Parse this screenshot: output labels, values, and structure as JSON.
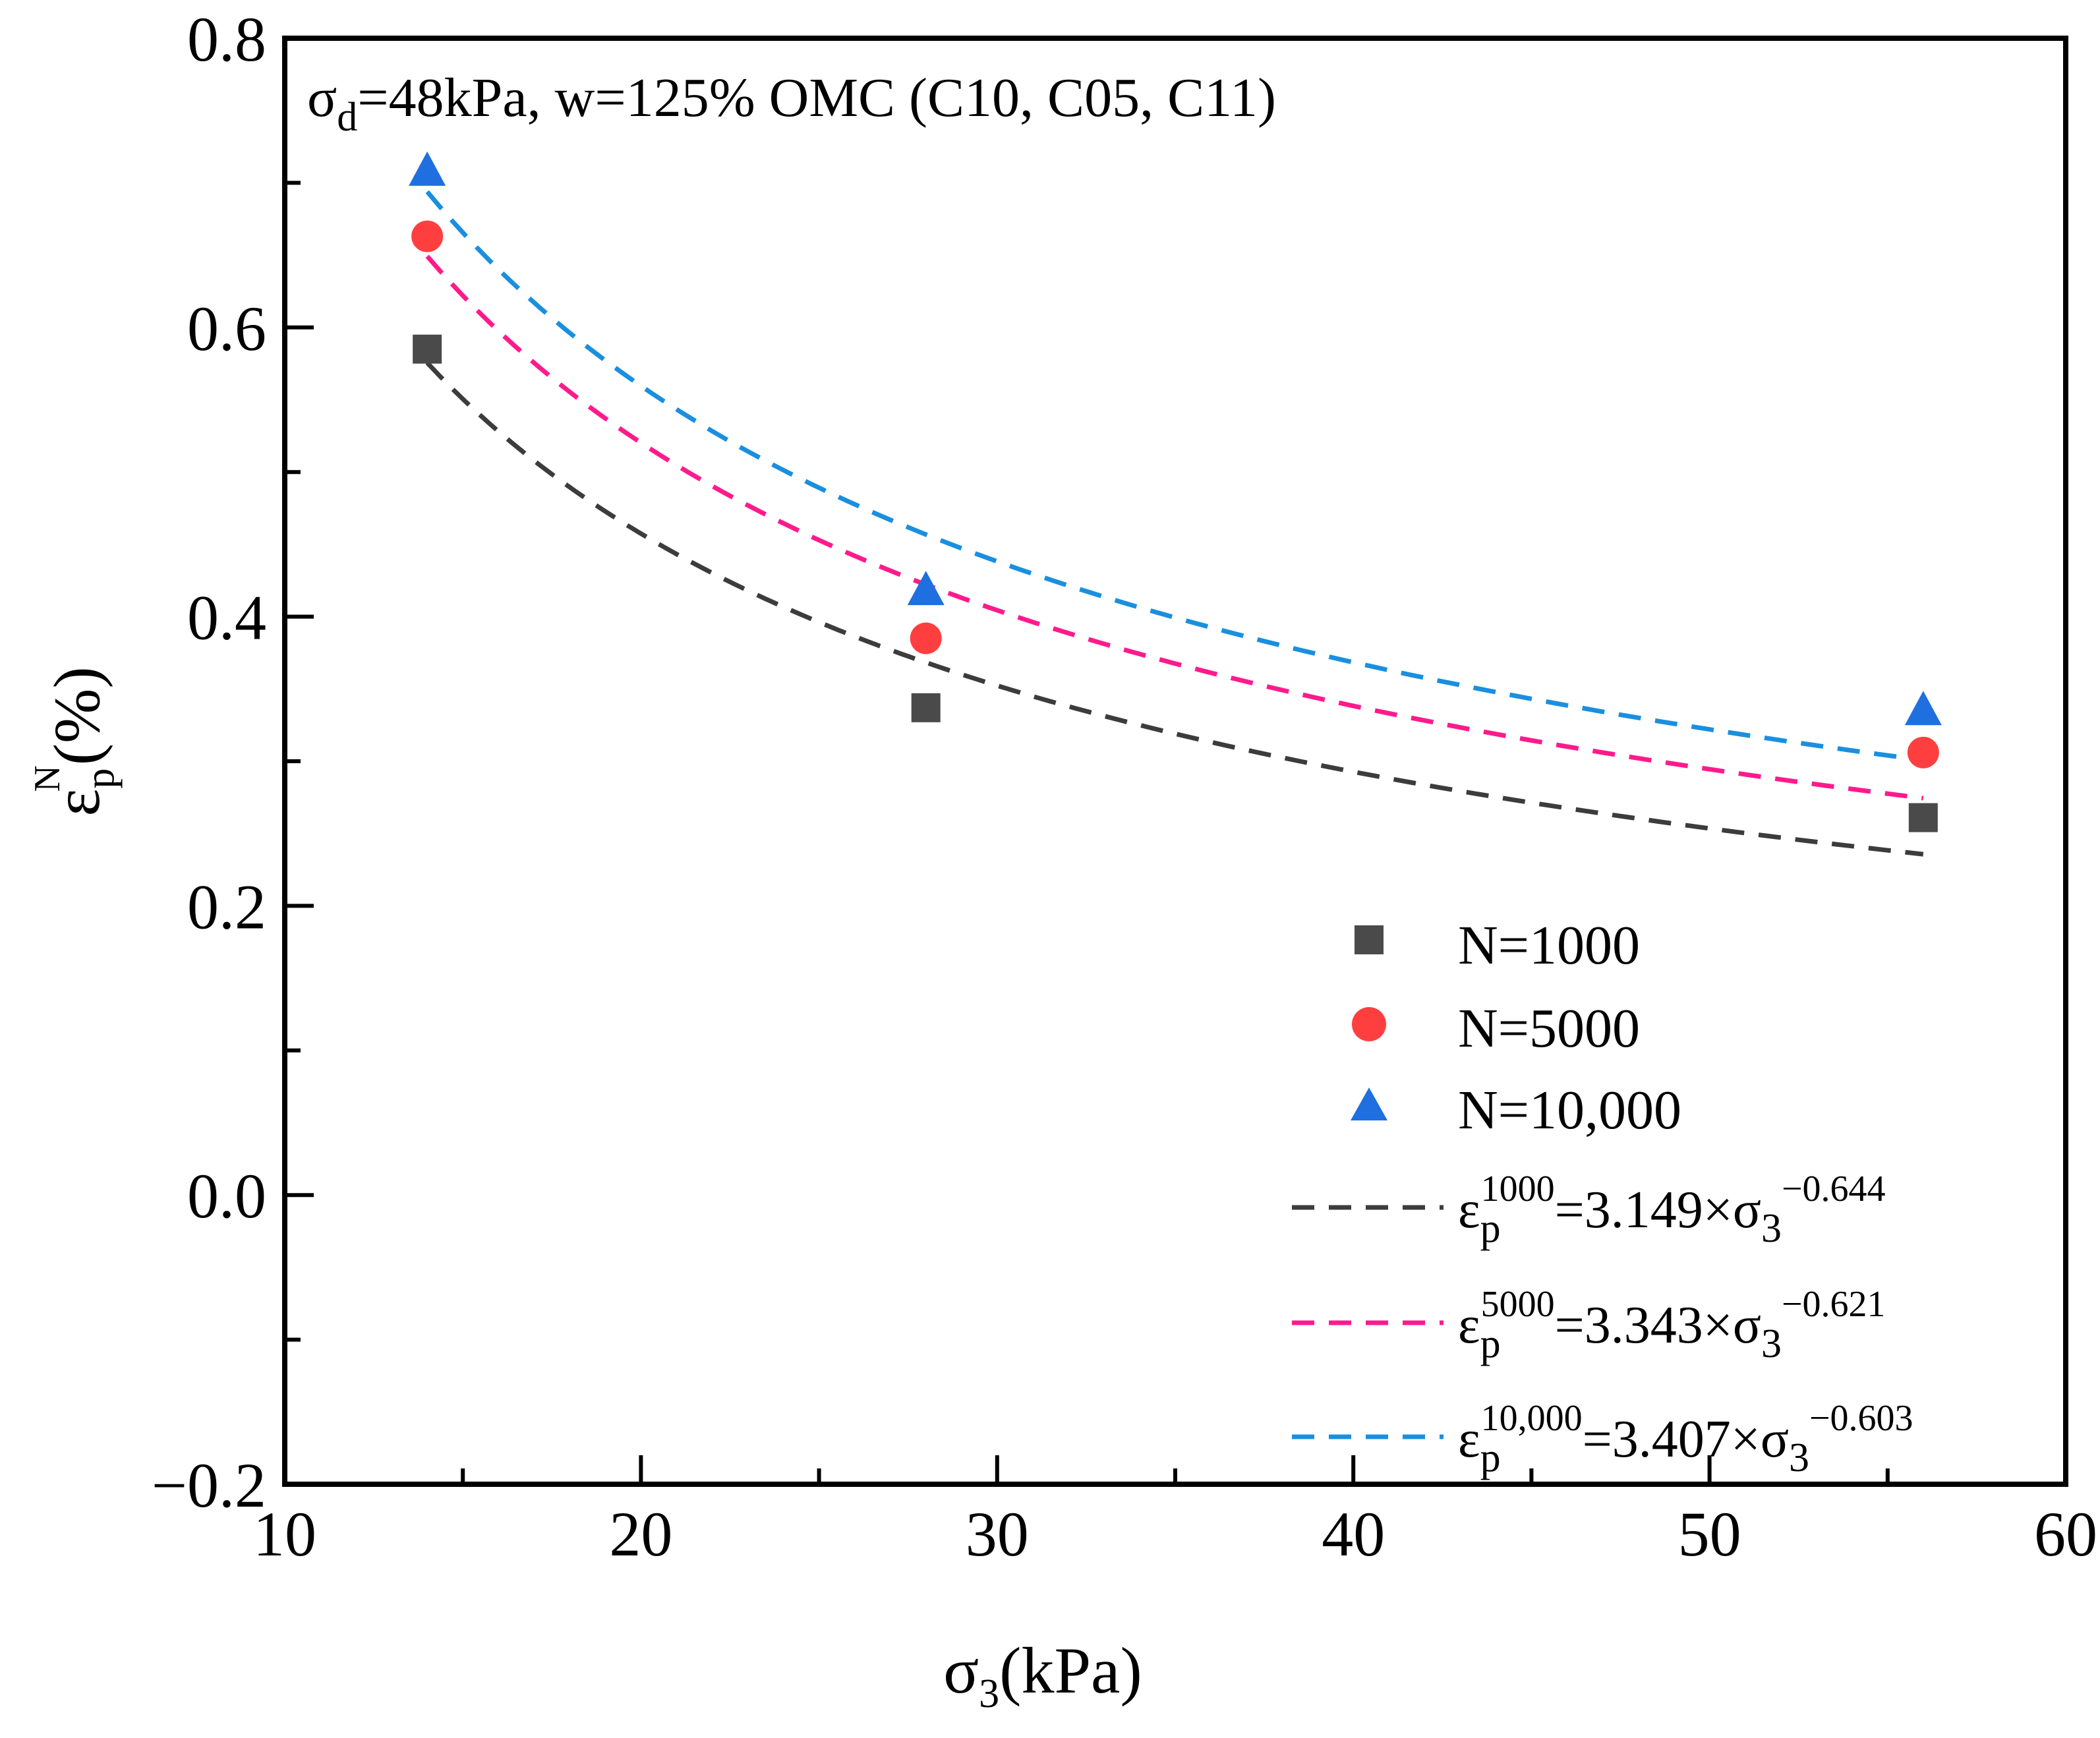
{
  "chart_data": {
    "type": "scatter",
    "annotation": {
      "sigma": "σ",
      "sub": "d",
      "rest": "=48kPa, w=125% OMC (C10, C05, C11)"
    },
    "xlabel": {
      "sym": "σ",
      "sub": "3",
      "rest": "(kPa)"
    },
    "ylabel": {
      "sym": "ε",
      "sub": "p",
      "sup": "N",
      "rest": "(%)"
    },
    "xlim": [
      10,
      60
    ],
    "ylim": [
      -0.2,
      0.8
    ],
    "x_ticks": [
      10,
      20,
      30,
      40,
      50,
      60
    ],
    "x_tick_labels": [
      "10",
      "20",
      "30",
      "40",
      "50",
      "60"
    ],
    "y_ticks": [
      -0.2,
      0.0,
      0.2,
      0.4,
      0.6,
      0.8
    ],
    "y_tick_labels": [
      "−0.2",
      "0.0",
      "0.2",
      "0.4",
      "0.6",
      "0.8"
    ],
    "series": [
      {
        "name": "N=1000",
        "marker": "square",
        "color": "#4a4a4a",
        "x": [
          14,
          28,
          56
        ],
        "y": [
          0.585,
          0.337,
          0.261
        ]
      },
      {
        "name": "N=5000",
        "marker": "circle",
        "color": "#ff3f3f",
        "x": [
          14,
          28,
          56
        ],
        "y": [
          0.663,
          0.385,
          0.306
        ]
      },
      {
        "name": "N=10,000",
        "marker": "triangle",
        "color": "#1f6fe0",
        "x": [
          14,
          28,
          56
        ],
        "y": [
          0.708,
          0.418,
          0.335
        ]
      }
    ],
    "fits": [
      {
        "label_sup": "1000",
        "label_rest": "=3.149×σ",
        "exp": "−0.644",
        "a": 3.149,
        "b": -0.644,
        "color": "#3c3c3c",
        "x_range": [
          14,
          56
        ]
      },
      {
        "label_sup": "5000",
        "label_rest": "=3.343×σ",
        "exp": "−0.621",
        "a": 3.343,
        "b": -0.621,
        "color": "#ff1a8c",
        "x_range": [
          14,
          56
        ]
      },
      {
        "label_sup": "10,000",
        "label_rest": "=3.407×σ",
        "exp": "−0.603",
        "a": 3.407,
        "b": -0.603,
        "color": "#1a8fe0",
        "x_range": [
          14,
          56
        ]
      }
    ],
    "fit_symbol": {
      "eps": "ε",
      "sub": "p",
      "sigma_sub": "3"
    }
  }
}
